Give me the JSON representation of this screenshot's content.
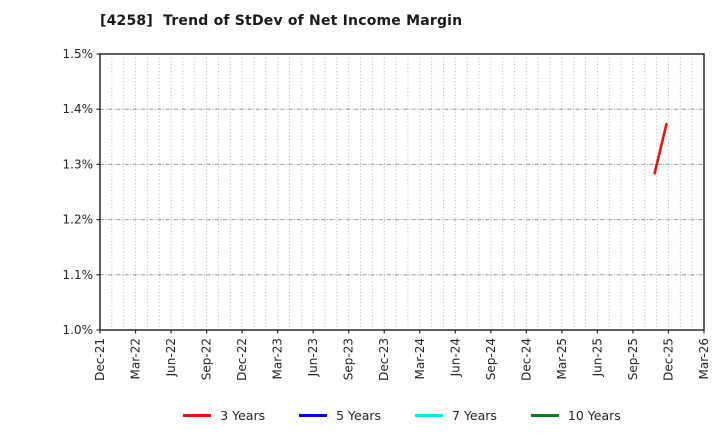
{
  "window": {
    "title": "[4258]  Trend of StDev of Net Income Margin"
  },
  "chart_data": {
    "type": "line",
    "title": "[4258]  Trend of StDev of Net Income Margin",
    "xlabel": "",
    "ylabel": "",
    "ylim": [
      1.0,
      1.5
    ],
    "yticks": [
      {
        "value": 1.0,
        "label": "1.0%"
      },
      {
        "value": 1.1,
        "label": "1.1%"
      },
      {
        "value": 1.2,
        "label": "1.2%"
      },
      {
        "value": 1.3,
        "label": "1.3%"
      },
      {
        "value": 1.4,
        "label": "1.4%"
      },
      {
        "value": 1.5,
        "label": "1.5%"
      }
    ],
    "x_axis": {
      "start_label": "Dec-21",
      "end_label": "Mar-26",
      "unit": "month",
      "total_months": 51
    },
    "xticks": [
      {
        "month_index": 0,
        "label": "Dec-21"
      },
      {
        "month_index": 3,
        "label": "Mar-22"
      },
      {
        "month_index": 6,
        "label": "Jun-22"
      },
      {
        "month_index": 9,
        "label": "Sep-22"
      },
      {
        "month_index": 12,
        "label": "Dec-22"
      },
      {
        "month_index": 15,
        "label": "Mar-23"
      },
      {
        "month_index": 18,
        "label": "Jun-23"
      },
      {
        "month_index": 21,
        "label": "Sep-23"
      },
      {
        "month_index": 24,
        "label": "Dec-23"
      },
      {
        "month_index": 27,
        "label": "Mar-24"
      },
      {
        "month_index": 30,
        "label": "Jun-24"
      },
      {
        "month_index": 33,
        "label": "Sep-24"
      },
      {
        "month_index": 36,
        "label": "Dec-24"
      },
      {
        "month_index": 39,
        "label": "Mar-25"
      },
      {
        "month_index": 42,
        "label": "Jun-25"
      },
      {
        "month_index": 45,
        "label": "Sep-25"
      },
      {
        "month_index": 48,
        "label": "Dec-25"
      },
      {
        "month_index": 51,
        "label": "Mar-26"
      }
    ],
    "grid": {
      "vertical": "monthly, dotted",
      "horizontal": "every 0.1%, dash-dot",
      "on": true
    },
    "legend_position": "bottom-center",
    "series": [
      {
        "name": "3 Years",
        "color": "#ee1111",
        "points": [
          {
            "x_label": "Nov-25",
            "month_index": 47,
            "y": 1.284
          },
          {
            "x_label": "Dec-25",
            "month_index": 48,
            "y": 1.373
          }
        ]
      },
      {
        "name": "5 Years",
        "color": "#0000ee",
        "points": []
      },
      {
        "name": "7 Years",
        "color": "#00e8e8",
        "points": []
      },
      {
        "name": "10 Years",
        "color": "#0b7f20",
        "points": []
      }
    ],
    "colors": {
      "frame": "#2b2b2b",
      "grid_vertical": "#b3b3b3",
      "grid_horizontal": "#999999",
      "text": "#262626",
      "background": "#ffffff"
    }
  }
}
